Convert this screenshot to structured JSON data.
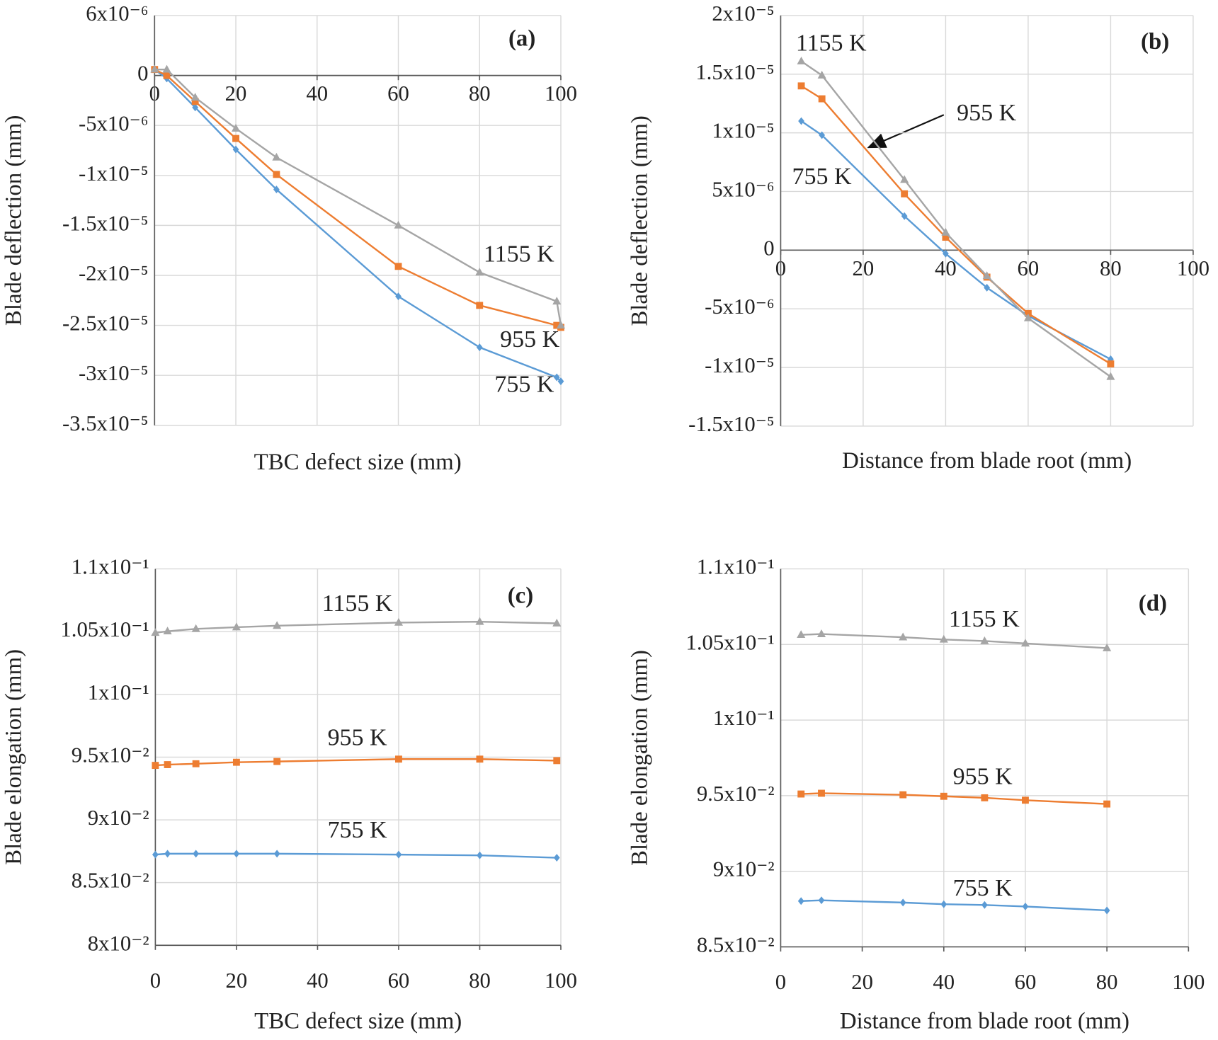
{
  "chart_data": [
    {
      "type": "line",
      "panel_label": "(a)",
      "x_label": "TBC defect size (mm)",
      "y_label": "Blade deflection (mm)",
      "grid": true,
      "x": [
        0,
        3,
        10,
        20,
        30,
        60,
        80,
        99,
        100
      ],
      "xlim": [
        0,
        100
      ],
      "xticks": [
        0,
        20,
        40,
        60,
        80,
        100
      ],
      "ylim": [
        -3.5e-05,
        6e-06
      ],
      "yticks": [
        {
          "value": 6e-06,
          "label": "6x10⁻⁶"
        },
        0,
        {
          "value": -5e-06,
          "label": "-5x10⁻⁶"
        },
        {
          "value": -1e-05,
          "label": "-1x10⁻⁵"
        },
        {
          "value": -1.5e-05,
          "label": "-1.5x10⁻⁵"
        },
        {
          "value": -2e-05,
          "label": "-2x10⁻⁵"
        },
        {
          "value": -2.5e-05,
          "label": "-2.5x10⁻⁵"
        },
        {
          "value": -3e-05,
          "label": "-3x10⁻⁵"
        },
        {
          "value": -3.5e-05,
          "label": "-3.5x10⁻⁵"
        }
      ],
      "series": [
        {
          "name": "755 K",
          "color": "#5b9bd5",
          "marker": "diamond",
          "values": [
            6e-07,
            -3e-07,
            -3.2e-06,
            -7.4e-06,
            -1.14e-05,
            -2.21e-05,
            -2.72e-05,
            -3.02e-05,
            -3.06e-05
          ]
        },
        {
          "name": "955 K",
          "color": "#ed7d31",
          "marker": "square",
          "values": [
            6e-07,
            0,
            -2.6e-06,
            -6.3e-06,
            -9.9e-06,
            -1.91e-05,
            -2.3e-05,
            -2.5e-05,
            -2.52e-05
          ]
        },
        {
          "name": "1155 K",
          "color": "#a5a5a5",
          "marker": "triangle",
          "values": [
            6e-07,
            6e-07,
            -2.2e-06,
            -5.3e-06,
            -8.2e-06,
            -1.5e-05,
            -1.97e-05,
            -2.26e-05,
            -2.5e-05
          ]
        }
      ]
    },
    {
      "type": "line",
      "panel_label": "(b)",
      "x_label": "Distance from blade root (mm)",
      "y_label": "Blade deflection (mm)",
      "grid": true,
      "x": [
        5,
        10,
        30,
        40,
        50,
        60,
        80
      ],
      "xlim": [
        0,
        100
      ],
      "xticks": [
        0,
        20,
        40,
        60,
        80,
        100
      ],
      "ylim": [
        -1.5e-05,
        2e-05
      ],
      "yticks": [
        {
          "value": 2e-05,
          "label": "2x10⁻⁵"
        },
        {
          "value": 1.5e-05,
          "label": "1.5x10⁻⁵"
        },
        {
          "value": 1e-05,
          "label": "1x10⁻⁵"
        },
        {
          "value": 5e-06,
          "label": "5x10⁻⁶"
        },
        0,
        {
          "value": -5e-06,
          "label": "-5x10⁻⁶"
        },
        {
          "value": -1e-05,
          "label": "-1x10⁻⁵"
        },
        {
          "value": -1.5e-05,
          "label": "-1.5x10⁻⁵"
        }
      ],
      "series": [
        {
          "name": "755 K",
          "color": "#5b9bd5",
          "marker": "diamond",
          "values": [
            1.1e-05,
            9.8e-06,
            2.9e-06,
            -3e-07,
            -3.2e-06,
            -5.6e-06,
            -9.3e-06
          ]
        },
        {
          "name": "955 K",
          "color": "#ed7d31",
          "marker": "square",
          "values": [
            1.4e-05,
            1.29e-05,
            4.8e-06,
            1.1e-06,
            -2.3e-06,
            -5.4e-06,
            -9.7e-06
          ]
        },
        {
          "name": "1155 K",
          "color": "#a5a5a5",
          "marker": "triangle",
          "values": [
            1.61e-05,
            1.49e-05,
            6e-06,
            1.5e-06,
            -2.2e-06,
            -5.8e-06,
            -1.08e-05
          ]
        }
      ]
    },
    {
      "type": "line",
      "panel_label": "(c)",
      "x_label": "TBC defect size (mm)",
      "y_label": "Blade elongation (mm)",
      "grid": true,
      "x": [
        0,
        3,
        10,
        20,
        30,
        60,
        80,
        99
      ],
      "xlim": [
        0,
        100
      ],
      "xticks": [
        0,
        20,
        40,
        60,
        80,
        100
      ],
      "ylim": [
        0.08,
        0.11
      ],
      "yticks": [
        {
          "value": 0.11,
          "label": "1.1x10⁻¹"
        },
        {
          "value": 0.105,
          "label": "1.05x10⁻¹"
        },
        {
          "value": 0.1,
          "label": "1x10⁻¹"
        },
        {
          "value": 0.095,
          "label": "9.5x10⁻²"
        },
        {
          "value": 0.09,
          "label": "9x10⁻²"
        },
        {
          "value": 0.085,
          "label": "8.5x10⁻²"
        },
        {
          "value": 0.08,
          "label": "8x10⁻²"
        }
      ],
      "series": [
        {
          "name": "755 K",
          "color": "#5b9bd5",
          "marker": "diamond",
          "values": [
            0.08723,
            0.0873,
            0.0873,
            0.0873,
            0.0873,
            0.08723,
            0.08717,
            0.08698
          ]
        },
        {
          "name": "955 K",
          "color": "#ed7d31",
          "marker": "square",
          "values": [
            0.09434,
            0.0944,
            0.09447,
            0.09459,
            0.09465,
            0.09484,
            0.09484,
            0.09472
          ]
        },
        {
          "name": "1155 K",
          "color": "#a5a5a5",
          "marker": "triangle",
          "values": [
            0.10491,
            0.10503,
            0.10522,
            0.10535,
            0.10547,
            0.10572,
            0.10579,
            0.10566
          ]
        }
      ]
    },
    {
      "type": "line",
      "panel_label": "(d)",
      "x_label": "Distance from blade root (mm)",
      "y_label": "Blade elongation (mm)",
      "grid": true,
      "x": [
        5,
        10,
        30,
        40,
        50,
        60,
        80
      ],
      "xlim": [
        0,
        100
      ],
      "xticks": [
        0,
        20,
        40,
        60,
        80,
        100
      ],
      "ylim": [
        0.085,
        0.11
      ],
      "yticks": [
        {
          "value": 0.11,
          "label": "1.1x10⁻¹"
        },
        {
          "value": 0.105,
          "label": "1.05x10⁻¹"
        },
        {
          "value": 0.1,
          "label": "1x10⁻¹"
        },
        {
          "value": 0.095,
          "label": "9.5x10⁻²"
        },
        {
          "value": 0.09,
          "label": "9x10⁻²"
        },
        {
          "value": 0.085,
          "label": "8.5x10⁻²"
        }
      ],
      "series": [
        {
          "name": "755 K",
          "color": "#5b9bd5",
          "marker": "diamond",
          "values": [
            0.08803,
            0.08808,
            0.08793,
            0.08782,
            0.08777,
            0.08767,
            0.08741
          ]
        },
        {
          "name": "955 K",
          "color": "#ed7d31",
          "marker": "square",
          "values": [
            0.09511,
            0.09516,
            0.09506,
            0.09496,
            0.09486,
            0.0947,
            0.09445
          ]
        },
        {
          "name": "1155 K",
          "color": "#a5a5a5",
          "marker": "triangle",
          "values": [
            0.10564,
            0.10569,
            0.10548,
            0.10533,
            0.10523,
            0.10507,
            0.10476
          ]
        }
      ]
    }
  ]
}
